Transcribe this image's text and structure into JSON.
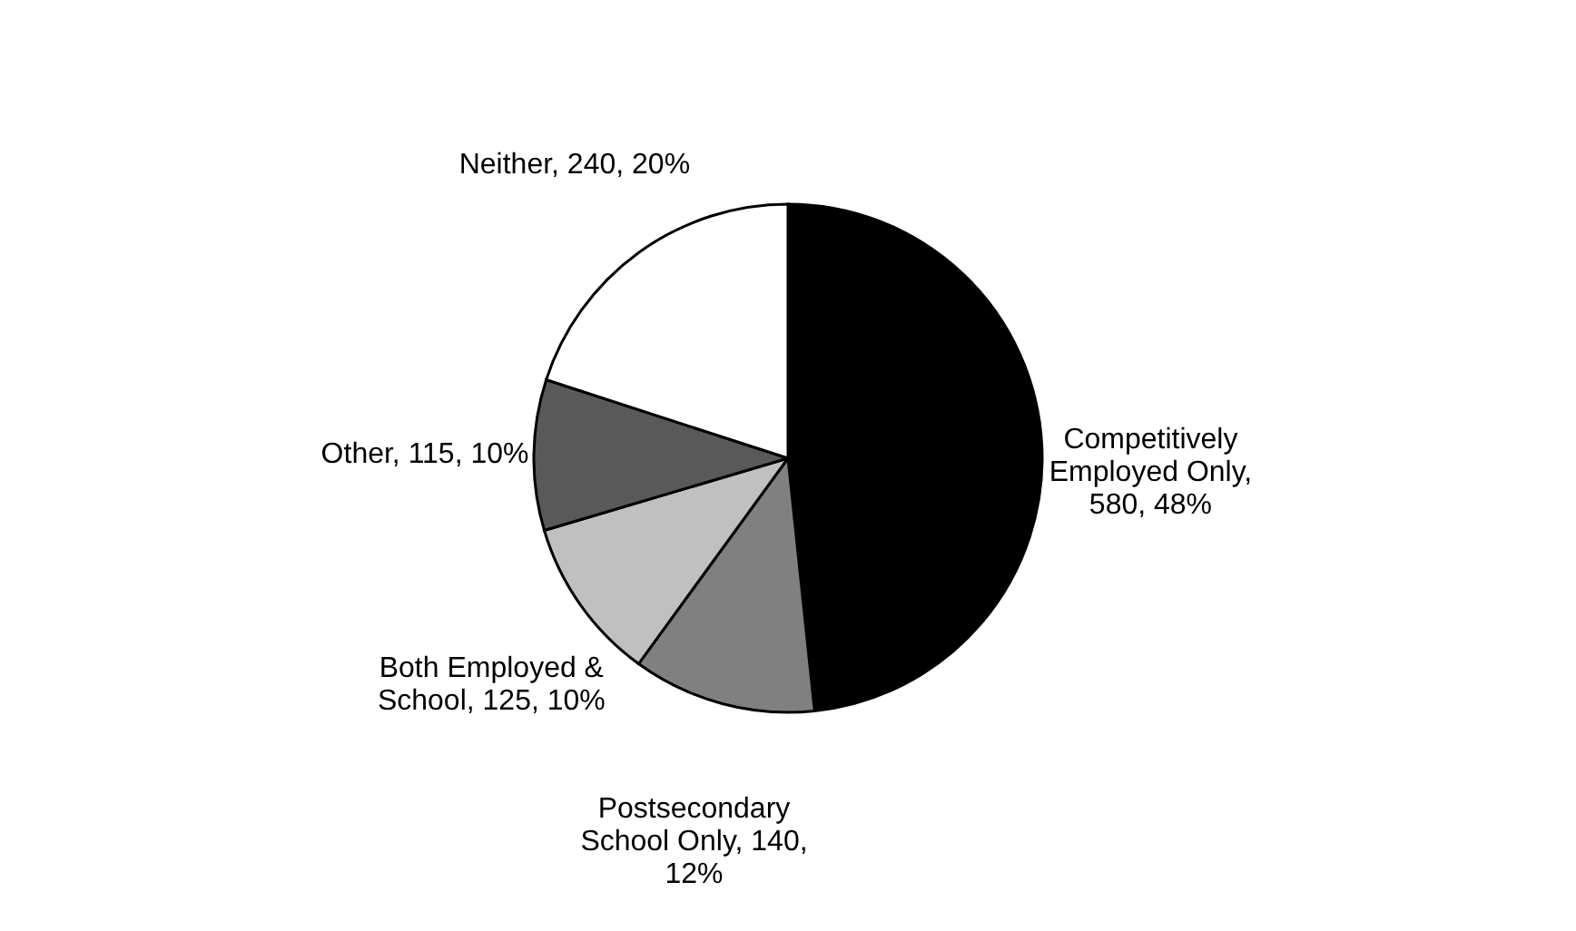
{
  "chart_data": {
    "type": "pie",
    "categories": [
      "Competitively Employed Only, 580, 48%",
      "Postsecondary School Only, 140, 12%",
      "Both Employed & School, 125, 10%",
      "Other, 115, 10%",
      "Neither, 240, 20%"
    ],
    "values": [
      580,
      140,
      125,
      115,
      240
    ],
    "colors": [
      "#000000",
      "#808080",
      "#c0c0c0",
      "#595959",
      "#ffffff"
    ],
    "legend": false
  }
}
